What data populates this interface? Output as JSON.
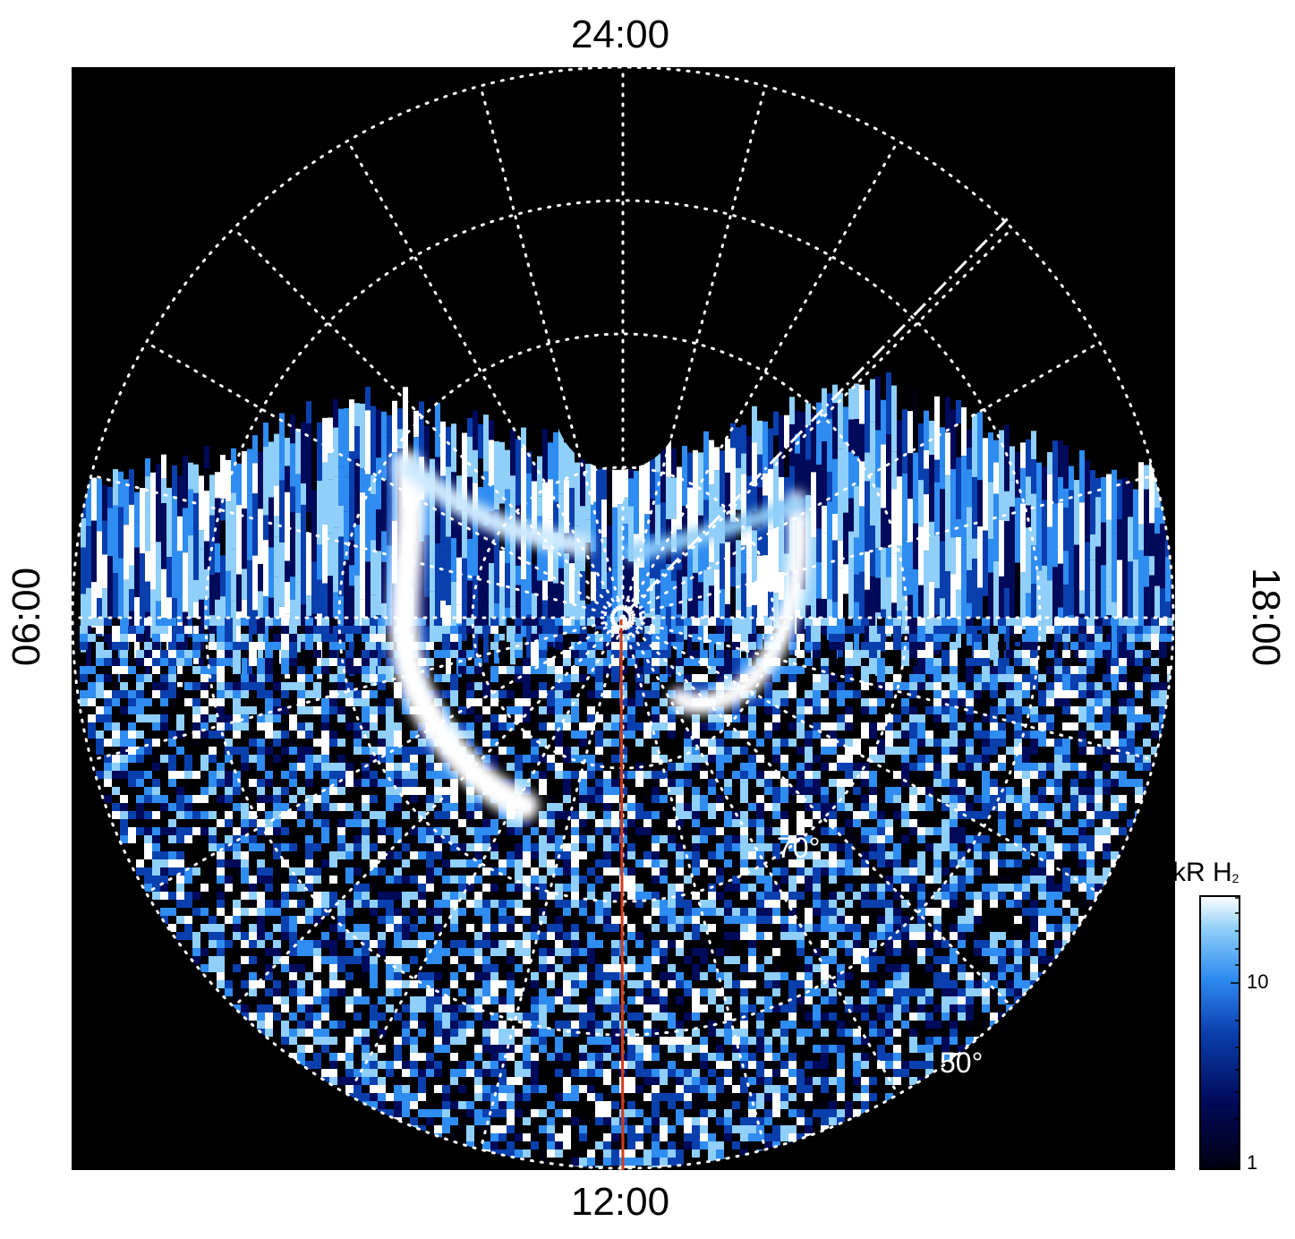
{
  "labels": {
    "top": "24:00",
    "bottom": "12:00",
    "left": "06:00",
    "right": "18:00"
  },
  "latitude_labels": [
    "70°",
    "50°"
  ],
  "colorbar": {
    "title": "kR H",
    "title_subscript": "2",
    "ticks": [
      "10",
      "1"
    ],
    "colors": [
      "#000010",
      "#000a5a",
      "#0a3fae",
      "#2f8cf0",
      "#8fcff9",
      "#ffffff"
    ]
  },
  "colors": {
    "background": "#000000",
    "grid": "#ffffff",
    "meridian_line": "#d03b1a"
  }
}
